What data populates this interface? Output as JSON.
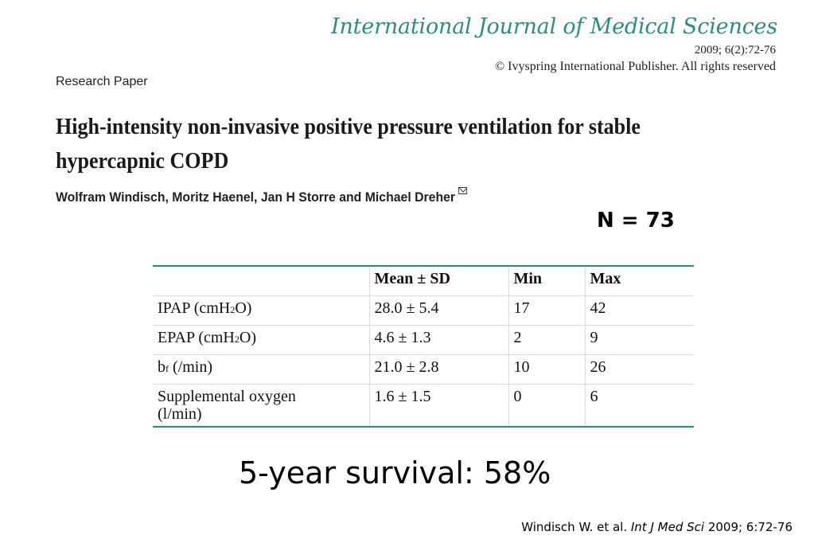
{
  "header": {
    "journal_title": "International Journal of Medical Sciences",
    "citation": "2009; 6(2):72-76",
    "copyright": "© Ivyspring International Publisher. All rights reserved"
  },
  "article": {
    "type": "Research Paper",
    "title_line1": "High-intensity non-invasive positive pressure ventilation for stable",
    "title_line2": "hypercapnic COPD",
    "authors": "Wolfram Windisch, Moritz Haenel, Jan H Storre and Michael Dreher",
    "author_icon": "envelope-icon"
  },
  "sample_size": "N = 73",
  "table": {
    "headers": [
      "",
      "Mean ± SD",
      "Min",
      "Max"
    ],
    "rows": [
      {
        "param": "IPAP (cmH",
        "sub": "2",
        "param_end": "O)",
        "mean_sd": "28.0 ± 5.4",
        "min": "17",
        "max": "42"
      },
      {
        "param": "EPAP (cmH",
        "sub": "2",
        "param_end": "O)",
        "mean_sd": "4.6 ± 1.3",
        "min": "2",
        "max": "9"
      },
      {
        "param": "b",
        "sub": "f",
        "param_end": " (/min)",
        "mean_sd": "21.0 ± 2.8",
        "min": "10",
        "max": "26"
      },
      {
        "param": "Supplemental oxygen",
        "param_line2": "(l/min)",
        "mean_sd": "1.6 ± 1.5",
        "min": "0",
        "max": "6"
      }
    ]
  },
  "survival": "5-year survival: 58%",
  "reference": {
    "authors": "Windisch W. et al. ",
    "journal": "Int J Med Sci",
    "details": " 2009; 6:72-76"
  },
  "colors": {
    "accent": "#2a8f7c"
  }
}
